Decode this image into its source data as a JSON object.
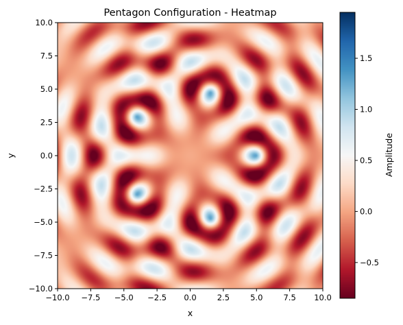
{
  "chart_data": {
    "type": "heatmap",
    "title": "Pentagon Configuration - Heatmap",
    "xlabel": "x",
    "ylabel": "y",
    "xlim": [
      -10,
      10
    ],
    "ylim": [
      -10,
      10
    ],
    "x_ticks": [
      -10.0,
      -7.5,
      -5.0,
      -2.5,
      0.0,
      2.5,
      5.0,
      7.5,
      10.0
    ],
    "y_ticks": [
      -10.0,
      -7.5,
      -5.0,
      -2.5,
      0.0,
      2.5,
      5.0,
      7.5,
      10.0
    ],
    "x_tick_labels": [
      "−10.0",
      "−7.5",
      "−5.0",
      "−2.5",
      "0.0",
      "2.5",
      "5.0",
      "7.5",
      "10.0"
    ],
    "y_tick_labels": [
      "−10.0",
      "−7.5",
      "−5.0",
      "−2.5",
      "0.0",
      "2.5",
      "5.0",
      "7.5",
      "10.0"
    ],
    "colormap": "RdBu",
    "colorbar": {
      "label": "Amplitude",
      "range": [
        -0.85,
        1.95
      ],
      "ticks": [
        -0.5,
        0.0,
        0.5,
        1.0,
        1.5
      ],
      "tick_labels": [
        "−0.5",
        "0.0",
        "0.5",
        "1.0",
        "1.5"
      ]
    },
    "sources": [
      {
        "x": 5.0,
        "y": 0.0
      },
      {
        "x": 1.55,
        "y": 4.76
      },
      {
        "x": -4.05,
        "y": 2.94
      },
      {
        "x": -4.05,
        "y": -2.94
      },
      {
        "x": 1.55,
        "y": -4.76
      }
    ],
    "grid": false
  }
}
